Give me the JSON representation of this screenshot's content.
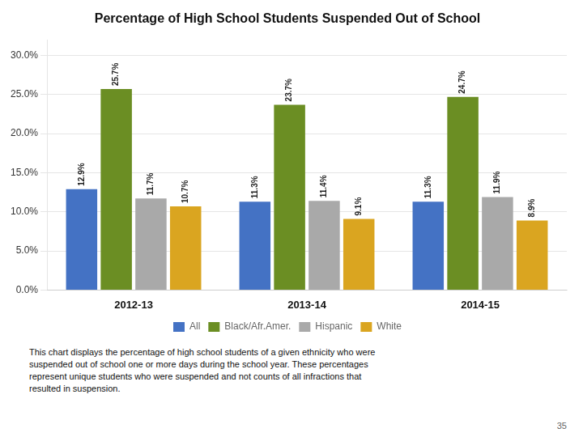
{
  "chart_data": {
    "type": "bar",
    "title": "Percentage of High School Students Suspended Out of School",
    "categories": [
      "2012-13",
      "2013-14",
      "2014-15"
    ],
    "series": [
      {
        "name": "All",
        "color": "#4472C4",
        "values": [
          12.9,
          11.3,
          11.3
        ],
        "value_labels": [
          "12.9%",
          "11.3%",
          "11.3%"
        ]
      },
      {
        "name": "Black/Afr.Amer.",
        "color": "#6B8E23",
        "values": [
          25.7,
          23.7,
          24.7
        ],
        "value_labels": [
          "25.7%",
          "23.7%",
          "24.7%"
        ]
      },
      {
        "name": "Hispanic",
        "color": "#A9A9A9",
        "values": [
          11.7,
          11.4,
          11.9
        ],
        "value_labels": [
          "11.7%",
          "11.4%",
          "11.9%"
        ]
      },
      {
        "name": "White",
        "color": "#DAA520",
        "values": [
          10.7,
          9.1,
          8.9
        ],
        "value_labels": [
          "10.7%",
          "9.1%",
          "8.9%"
        ]
      }
    ],
    "ylim": [
      0,
      32
    ],
    "yticks": [
      {
        "value": 0,
        "label": "0.0%"
      },
      {
        "value": 5,
        "label": "5.0%"
      },
      {
        "value": 10,
        "label": "10.0%"
      },
      {
        "value": 15,
        "label": "15.0%"
      },
      {
        "value": 20,
        "label": "20.0%"
      },
      {
        "value": 25,
        "label": "25.0%"
      },
      {
        "value": 30,
        "label": "30.0%"
      }
    ],
    "grid": true,
    "legend": "bottom",
    "data_labels": true,
    "annotations": [
      "This chart displays the percentage of high school students of a given ethnicity who were\nsuspended out of school one or more days during the school year. These percentages\nrepresent unique students who were suspended and not counts of all infractions that\nresulted in suspension.",
      "35"
    ]
  }
}
